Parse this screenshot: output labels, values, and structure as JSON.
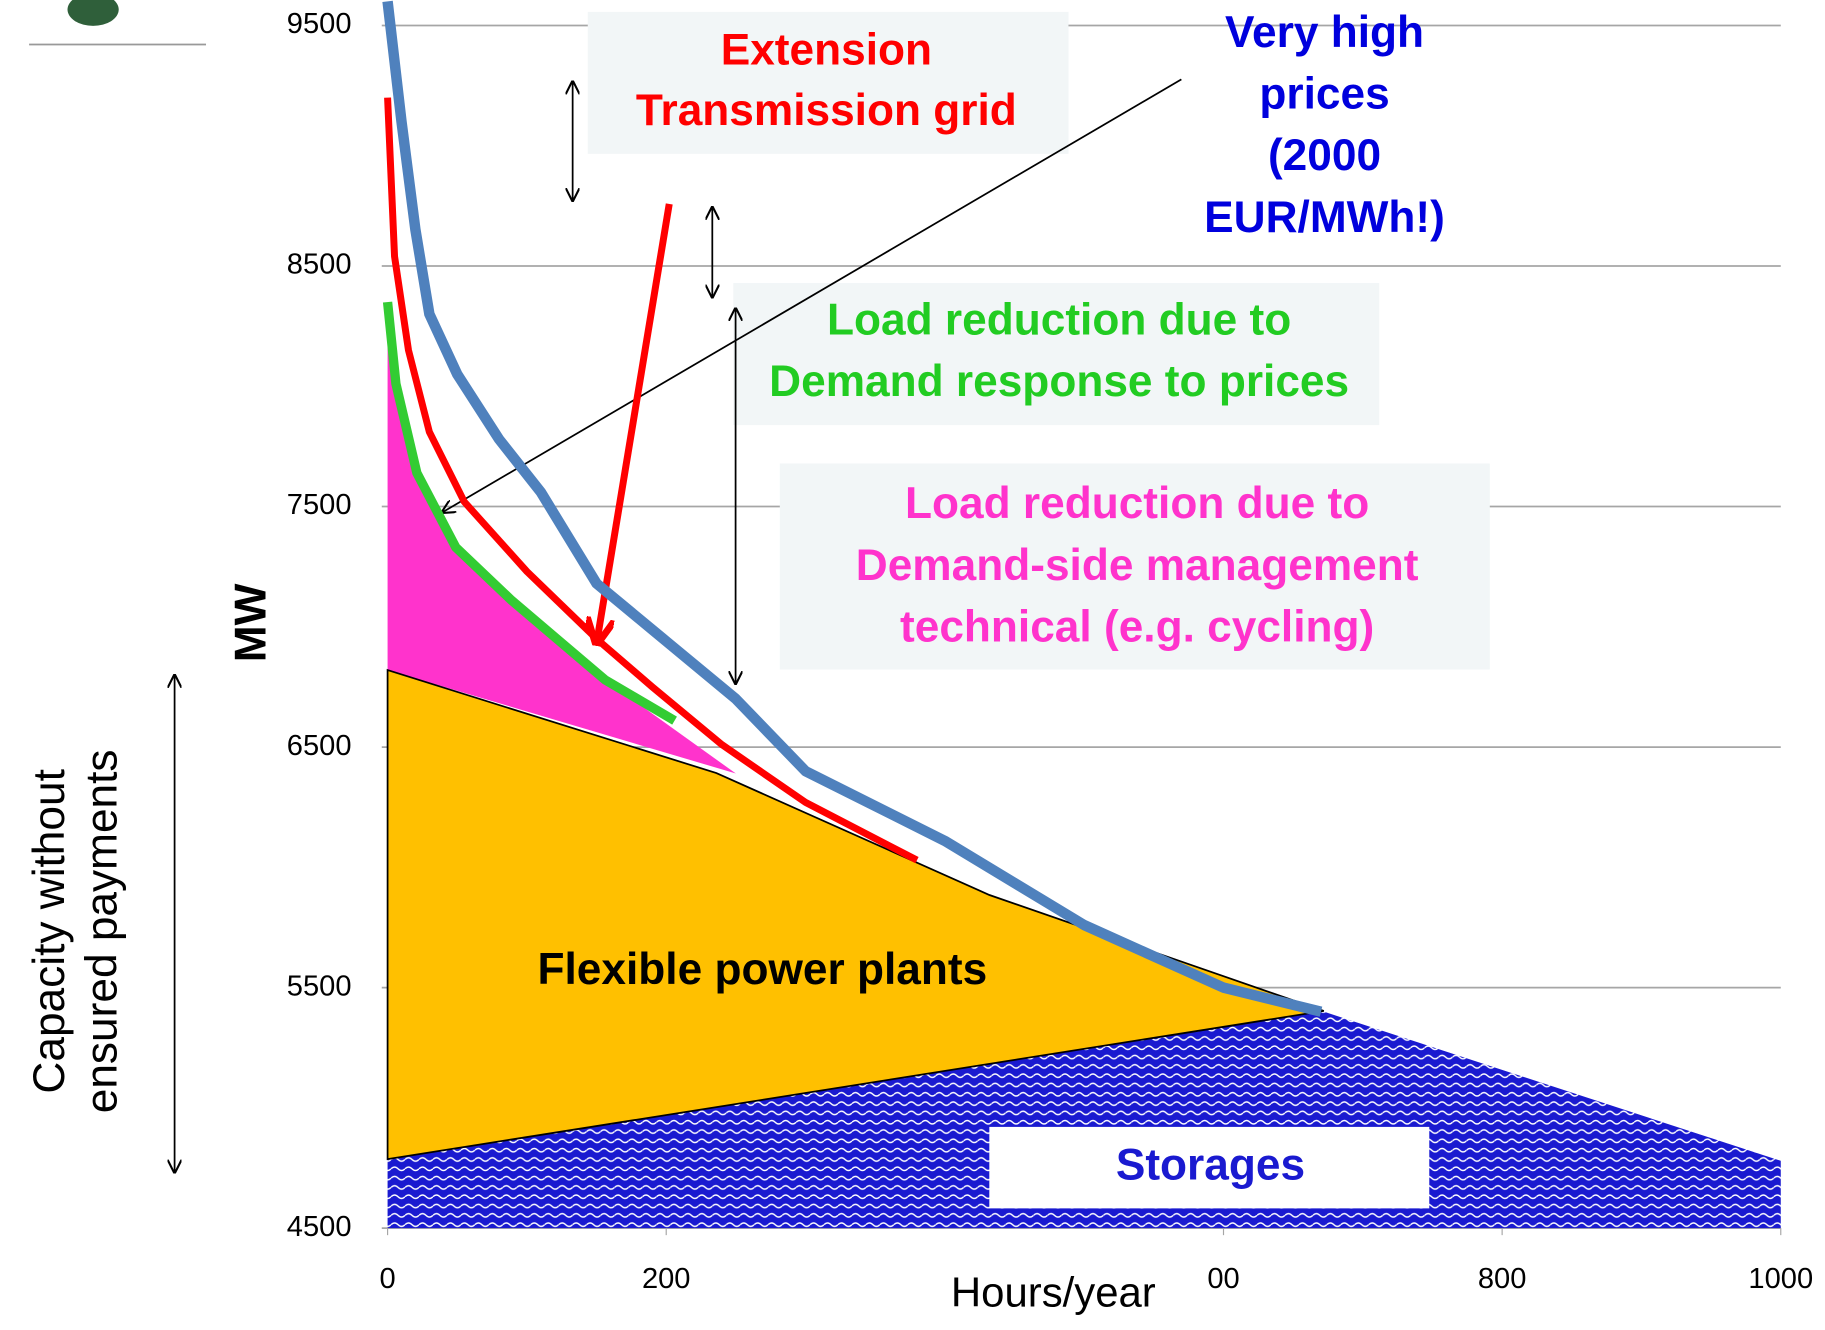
{
  "chart_data": {
    "type": "line",
    "x_label": "Hours/year",
    "y_label": "MW",
    "xlim": [
      0,
      1000
    ],
    "ylim": [
      4500,
      9600
    ],
    "xticks": [
      0,
      200,
      {
        "value": 600,
        "label": "00"
      },
      800,
      1000
    ],
    "yticks": [
      4500,
      5500,
      6500,
      7500,
      8500,
      9500
    ],
    "grid": true,
    "series": [
      {
        "color": "#4f81bd",
        "x": [
          0,
          10,
          20,
          30,
          50,
          80,
          110,
          150,
          200,
          250,
          300,
          400,
          500,
          600,
          670
        ],
        "values": [
          9600,
          9100,
          8650,
          8300,
          8050,
          7780,
          7560,
          7180,
          6940,
          6700,
          6400,
          6110,
          5760,
          5500,
          5400
        ]
      },
      {
        "color": "#ff0000",
        "x": [
          0,
          5,
          15,
          30,
          55,
          100,
          150,
          190,
          240,
          300,
          380
        ],
        "values": [
          9200,
          8540,
          8150,
          7810,
          7520,
          7230,
          6950,
          6750,
          6510,
          6270,
          6030
        ]
      },
      {
        "color": "#33cc33",
        "x": [
          0,
          6,
          21,
          49,
          89,
          156,
          206
        ],
        "values": [
          8350,
          8010,
          7640,
          7330,
          7110,
          6780,
          6610
        ]
      }
    ],
    "regions": [
      {
        "color": "#1a1ad0",
        "x": [
          0,
          672,
          1000,
          1000,
          0
        ],
        "values": [
          4800,
          5400,
          4780,
          4500,
          4500
        ]
      },
      {
        "color": "#ff33cc",
        "x": [
          0,
          6,
          21,
          49,
          89,
          156,
          250,
          0
        ],
        "values": [
          8200,
          8010,
          7640,
          7330,
          7110,
          6780,
          6390,
          6820
        ]
      },
      {
        "color": "#ffc000",
        "x": [
          0,
          236,
          432,
          672,
          0
        ],
        "values": [
          6820,
          6392,
          5885,
          5403,
          4787
        ]
      }
    ],
    "annotations": [
      {
        "lines": [
          "Extension",
          "Transmission grid"
        ],
        "color": "#ff0000"
      },
      {
        "lines": [
          "Very high",
          "prices",
          "(2000",
          "EUR/MWh!)"
        ],
        "color": "#0000dd"
      },
      {
        "lines": [
          "Load reduction due to",
          "Demand response to prices"
        ],
        "color": "#22cc22"
      },
      {
        "lines": [
          "Load reduction due to",
          "Demand-side management",
          "technical (e.g. cycling)"
        ],
        "color": "#ff33cc"
      },
      {
        "lines": [
          "Flexible power plants"
        ],
        "color": "#000000"
      },
      {
        "lines": [
          "Storages"
        ],
        "color": "#1a1ad0"
      },
      {
        "lines": [
          "Capacity without",
          "ensured payments"
        ],
        "color": "#000000"
      }
    ]
  }
}
